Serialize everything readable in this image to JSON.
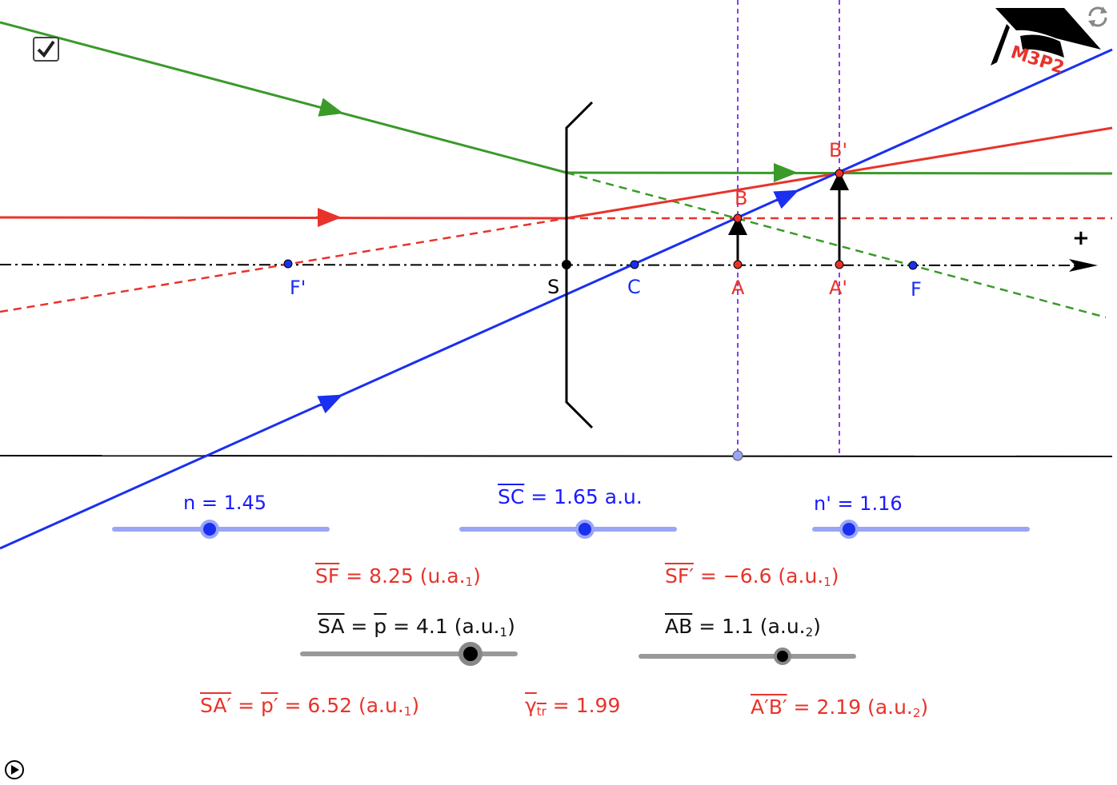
{
  "checkbox": {
    "checked": true
  },
  "points": {
    "S": "S",
    "C": "C",
    "A": "A",
    "A_prime": "A'",
    "B": "B",
    "B_prime": "B'",
    "F": "F",
    "F_prime": "F'"
  },
  "axis_plus": "+",
  "logo_text": "M3P2",
  "sliders": {
    "n": {
      "label": "n = 1.45",
      "value": 1.45,
      "fraction": 0.45
    },
    "SC": {
      "label_name": "SC",
      "label_rest": " = 1.65 a.u.",
      "value": 1.65,
      "fraction": 0.58
    },
    "n_prime": {
      "label": "n' = 1.16",
      "value": 1.16,
      "fraction": 0.17
    },
    "SA": {
      "name": "SA",
      "rest1": " = ",
      "p": "p",
      "rest2": " = 4.1 (a.u.",
      "sub": "1",
      "close": ")",
      "value": 4.1,
      "fraction": 0.79
    },
    "AB": {
      "name": "AB",
      "rest": " =  1.1 (a.u.",
      "sub": "2",
      "close": ")",
      "value": 1.1,
      "fraction": 0.67
    }
  },
  "results": {
    "SF": {
      "name": "SF",
      "rest": " = 8.25 (u.a.",
      "sub": "1",
      "close": ")"
    },
    "SF_prime": {
      "name": "SF′",
      "rest": " = −6.6 (a.u.",
      "sub": "1",
      "close": ")"
    },
    "SA_prime": {
      "name": "SA′",
      "rest1": " = ",
      "p": "p′",
      "rest2": " = 6.52 (a.u.",
      "sub": "1",
      "close": ")"
    },
    "gamma": {
      "name": "γ",
      "sub": "tr",
      "rest": " = 1.99"
    },
    "AB_prime": {
      "name": "A′B′",
      "rest": " = 2.19 (a.u.",
      "sub": "2",
      "close": ")"
    }
  },
  "colors": {
    "green": "#3a9a2a",
    "red": "#e8332b",
    "blue": "#1a2ff0",
    "purple": "#8a3cf0",
    "slider_blue": "#9aa6f5",
    "slider_gray": "#999999"
  }
}
